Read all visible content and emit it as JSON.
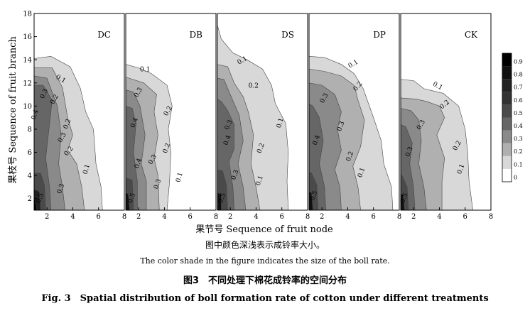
{
  "figure": {
    "x_axis_label": "果节号 Sequence of fruit node",
    "y_axis_label": "果枝号 Sequence of fruit branch",
    "note_cn": "图中颜色深浅表示成铃率大小。",
    "note_en": "The color shade in the figure indicates the size of the boll rate.",
    "title_cn": "图3　不同处理下棉花成铃率的空间分布",
    "title_en": "Fig. 3　Spatial distribution of boll formation rate of cotton under different treatments"
  },
  "chart_data": {
    "type": "heatmap",
    "panels": [
      {
        "name": "DC",
        "contour_labels": [
          "0.1",
          "0.2",
          "0.3",
          "0.4",
          "0.2",
          "0.3",
          "0.2",
          "0.1",
          "0.5",
          "0.3"
        ]
      },
      {
        "name": "DB",
        "contour_labels": [
          "0.1",
          "0.3",
          "0.2",
          "0.4",
          "0.2",
          "0.3",
          "0.4",
          "0.3",
          "0.1",
          "0.5"
        ]
      },
      {
        "name": "DS",
        "contour_labels": [
          "0.1",
          "0.2",
          "0.1",
          "0.3",
          "0.4",
          "0.2",
          "0.3",
          "0.1",
          "0.5"
        ]
      },
      {
        "name": "DP",
        "contour_labels": [
          "0.1",
          "0.2",
          "0.3",
          "0.3",
          "0.2",
          "0.1",
          "0.4",
          "0.5"
        ]
      },
      {
        "name": "CK",
        "contour_labels": [
          "0.1",
          "0.2",
          "0.3",
          "0.2",
          "0.3",
          "0.1",
          "0.5"
        ]
      }
    ],
    "x_ticks": [
      "2",
      "4",
      "6",
      "8"
    ],
    "y_ticks": [
      "2",
      "4",
      "6",
      "8",
      "10",
      "12",
      "14",
      "16",
      "18"
    ],
    "xlim": [
      1,
      8
    ],
    "ylim": [
      1,
      18
    ],
    "colorbar": {
      "ticks": [
        "0",
        "0.1",
        "0.2",
        "0.3",
        "0.4",
        "0.5",
        "0.6",
        "0.7",
        "0.8",
        "0.9"
      ],
      "colors": [
        "#ffffff",
        "#d8d8d8",
        "#b0b0b0",
        "#8a8a8a",
        "#666666",
        "#4a4a4a",
        "#333333",
        "#222222",
        "#111111",
        "#000000"
      ]
    }
  }
}
